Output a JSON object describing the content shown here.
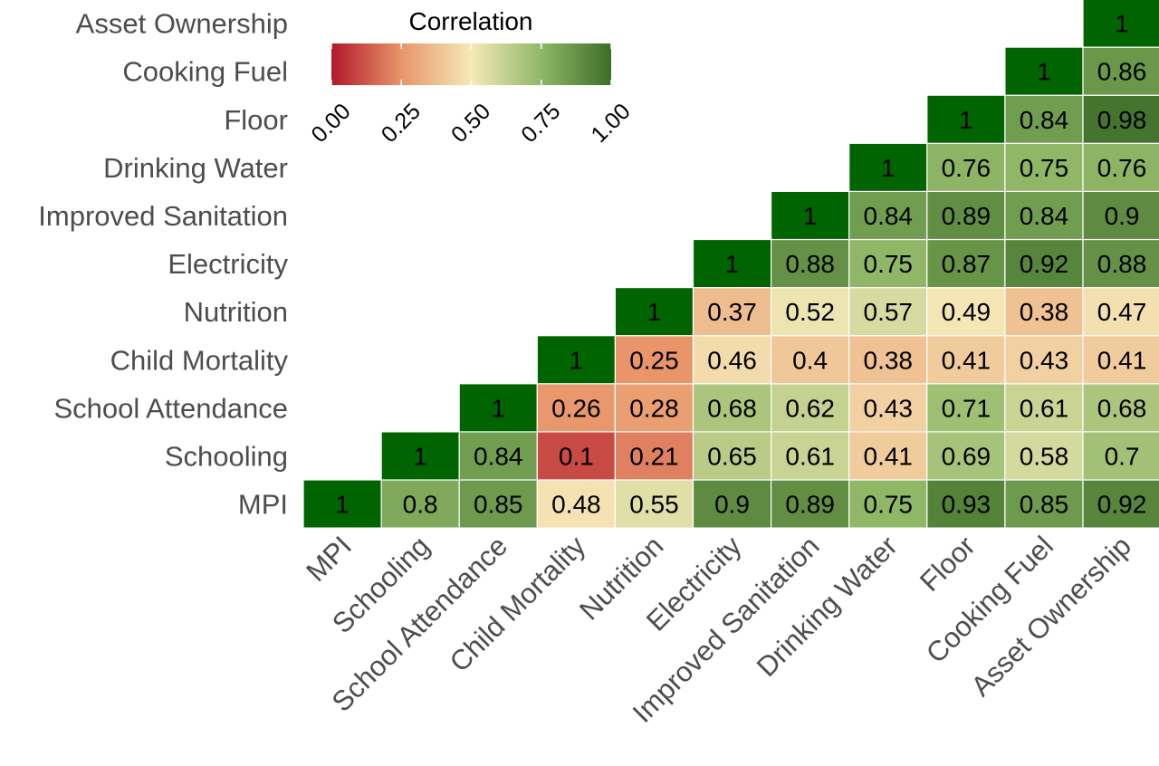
{
  "chart_data": {
    "type": "heatmap",
    "title": "",
    "xlabel": "",
    "ylabel": "",
    "variables": [
      "MPI",
      "Schooling",
      "School Attendance",
      "Child Mortality",
      "Nutrition",
      "Electricity",
      "Improved Sanitation",
      "Drinking Water",
      "Floor",
      "Cooking Fuel",
      "Asset Ownership"
    ],
    "matrix_lower_triangle": [
      [
        1
      ],
      [
        0.8,
        1
      ],
      [
        0.85,
        0.84,
        1
      ],
      [
        0.48,
        0.1,
        0.26,
        1
      ],
      [
        0.55,
        0.21,
        0.28,
        0.25,
        1
      ],
      [
        0.9,
        0.65,
        0.68,
        0.46,
        0.37,
        1
      ],
      [
        0.89,
        0.61,
        0.62,
        0.4,
        0.52,
        0.88,
        1
      ],
      [
        0.75,
        0.41,
        0.43,
        0.38,
        0.57,
        0.75,
        0.84,
        1
      ],
      [
        0.93,
        0.69,
        0.71,
        0.41,
        0.49,
        0.87,
        0.89,
        0.76,
        1
      ],
      [
        0.85,
        0.58,
        0.61,
        0.43,
        0.38,
        0.92,
        0.84,
        0.75,
        0.84,
        1
      ],
      [
        0.92,
        0.7,
        0.68,
        0.41,
        0.47,
        0.88,
        0.9,
        0.76,
        0.98,
        0.86,
        1
      ]
    ],
    "legend": {
      "title": "Correlation",
      "placement": "top-left",
      "range": [
        0,
        1
      ],
      "ticks": [
        "0.00",
        "0.25",
        "0.50",
        "0.75",
        "1.00"
      ],
      "colors": [
        "#b2182b",
        "#e8956a",
        "#f5e9b8",
        "#8fb766",
        "#3d6e28"
      ]
    },
    "diagonal_color": "#006400",
    "grid": false
  }
}
